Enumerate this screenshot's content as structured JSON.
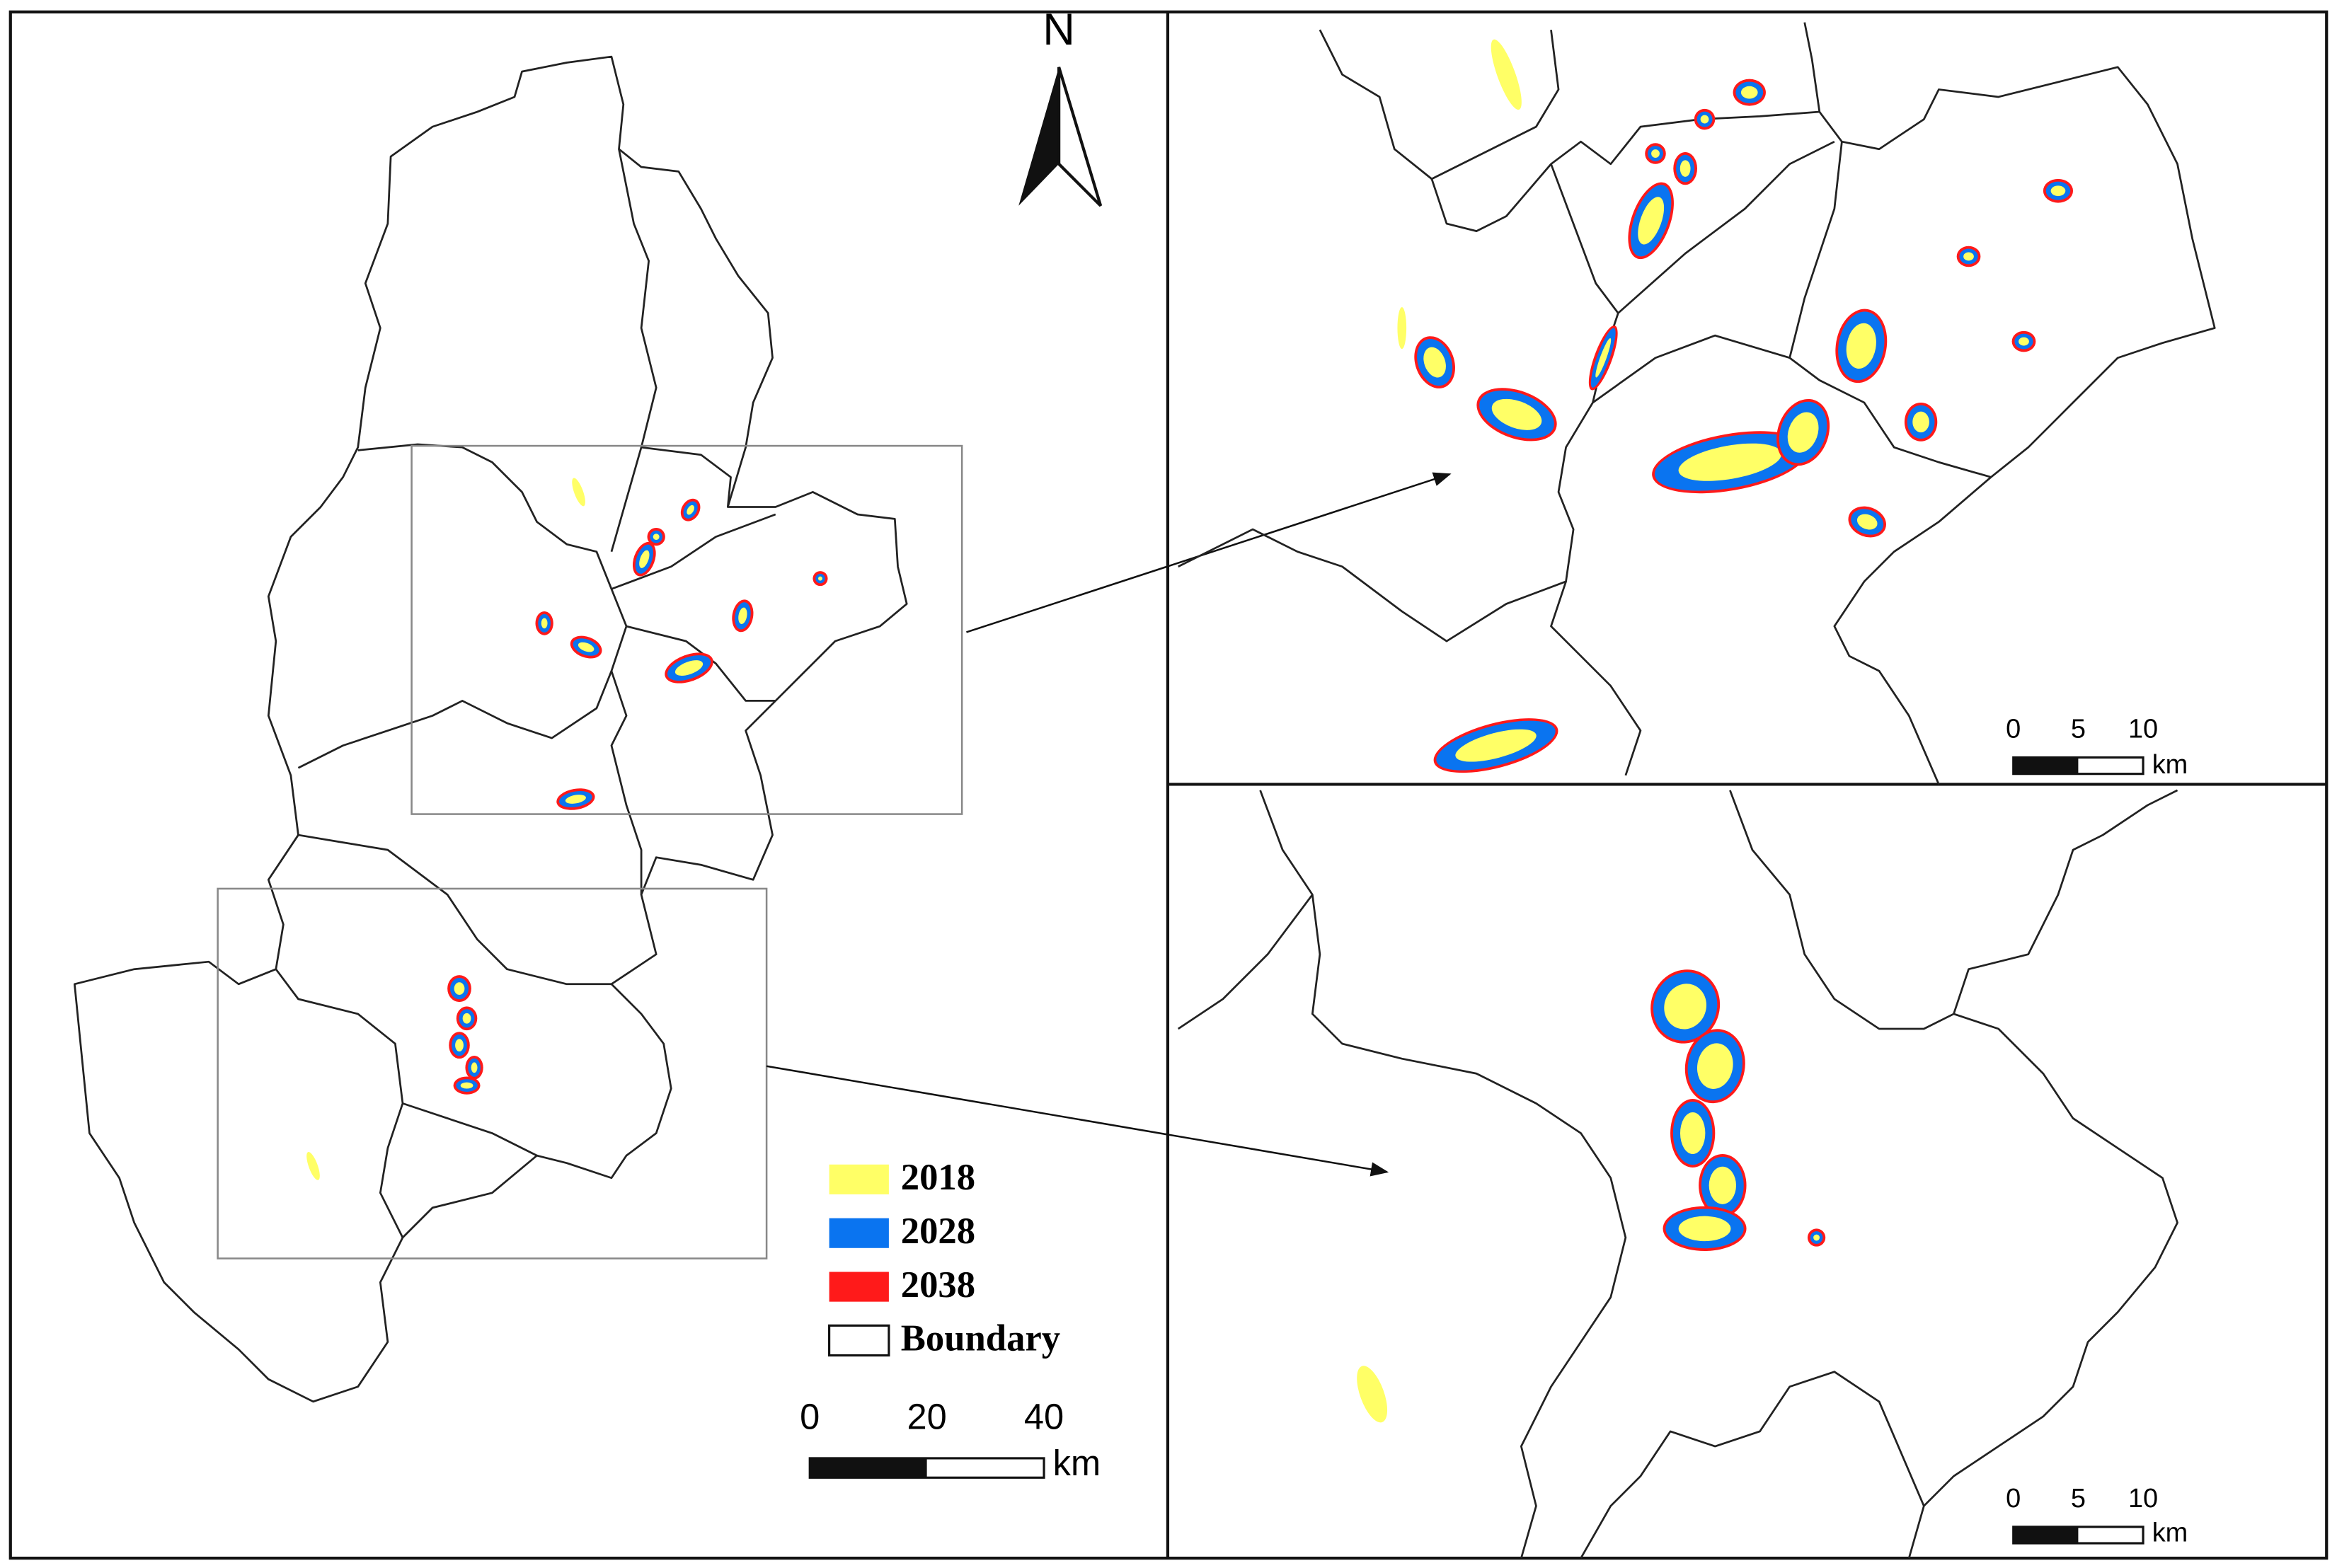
{
  "north_label": "N",
  "legend": [
    {
      "label": "2018",
      "color": "#ffff66"
    },
    {
      "label": "2028",
      "color": "#0a74f0"
    },
    {
      "label": "2038",
      "color": "#ff1a1a"
    },
    {
      "label": "Boundary",
      "color": "#ffffff"
    }
  ],
  "scale_bars": [
    {
      "ticks": [
        0,
        20,
        40
      ],
      "unit": "km"
    },
    {
      "ticks": [
        0,
        5,
        10
      ],
      "unit": "km"
    },
    {
      "ticks": [
        0,
        5,
        10
      ],
      "unit": "km"
    }
  ]
}
